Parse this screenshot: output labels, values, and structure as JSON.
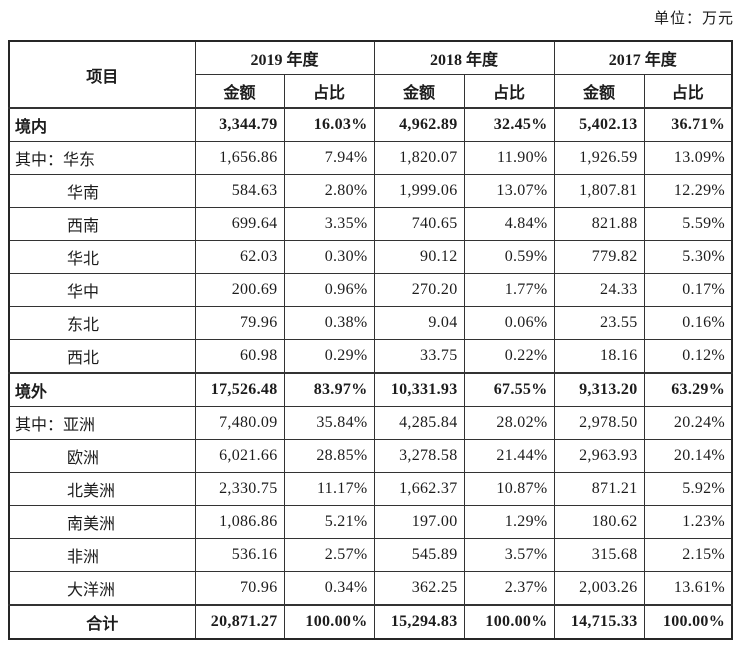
{
  "unit_label": "单位：万元",
  "table": {
    "headers": {
      "item": "项目",
      "years": [
        "2019 年度",
        "2018 年度",
        "2017 年度"
      ],
      "amount": "金额",
      "ratio": "占比"
    },
    "rows": [
      {
        "label": "境内",
        "type": "section",
        "values": [
          "3,344.79",
          "16.03%",
          "4,962.89",
          "32.45%",
          "5,402.13",
          "36.71%"
        ]
      },
      {
        "label": "其中：华东",
        "type": "sub-first",
        "values": [
          "1,656.86",
          "7.94%",
          "1,820.07",
          "11.90%",
          "1,926.59",
          "13.09%"
        ]
      },
      {
        "label": "华南",
        "type": "sub",
        "values": [
          "584.63",
          "2.80%",
          "1,999.06",
          "13.07%",
          "1,807.81",
          "12.29%"
        ]
      },
      {
        "label": "西南",
        "type": "sub",
        "values": [
          "699.64",
          "3.35%",
          "740.65",
          "4.84%",
          "821.88",
          "5.59%"
        ]
      },
      {
        "label": "华北",
        "type": "sub",
        "values": [
          "62.03",
          "0.30%",
          "90.12",
          "0.59%",
          "779.82",
          "5.30%"
        ]
      },
      {
        "label": "华中",
        "type": "sub",
        "values": [
          "200.69",
          "0.96%",
          "270.20",
          "1.77%",
          "24.33",
          "0.17%"
        ]
      },
      {
        "label": "东北",
        "type": "sub",
        "values": [
          "79.96",
          "0.38%",
          "9.04",
          "0.06%",
          "23.55",
          "0.16%"
        ]
      },
      {
        "label": "西北",
        "type": "sub",
        "values": [
          "60.98",
          "0.29%",
          "33.75",
          "0.22%",
          "18.16",
          "0.12%"
        ]
      },
      {
        "label": "境外",
        "type": "section",
        "values": [
          "17,526.48",
          "83.97%",
          "10,331.93",
          "67.55%",
          "9,313.20",
          "63.29%"
        ]
      },
      {
        "label": "其中：亚洲",
        "type": "sub-first",
        "values": [
          "7,480.09",
          "35.84%",
          "4,285.84",
          "28.02%",
          "2,978.50",
          "20.24%"
        ]
      },
      {
        "label": "欧洲",
        "type": "sub",
        "values": [
          "6,021.66",
          "28.85%",
          "3,278.58",
          "21.44%",
          "2,963.93",
          "20.14%"
        ]
      },
      {
        "label": "北美洲",
        "type": "sub",
        "values": [
          "2,330.75",
          "11.17%",
          "1,662.37",
          "10.87%",
          "871.21",
          "5.92%"
        ]
      },
      {
        "label": "南美洲",
        "type": "sub",
        "values": [
          "1,086.86",
          "5.21%",
          "197.00",
          "1.29%",
          "180.62",
          "1.23%"
        ]
      },
      {
        "label": "非洲",
        "type": "sub",
        "values": [
          "536.16",
          "2.57%",
          "545.89",
          "3.57%",
          "315.68",
          "2.15%"
        ]
      },
      {
        "label": "大洋洲",
        "type": "sub",
        "values": [
          "70.96",
          "0.34%",
          "362.25",
          "2.37%",
          "2,003.26",
          "13.61%"
        ]
      },
      {
        "label": "合计",
        "type": "total",
        "values": [
          "20,871.27",
          "100.00%",
          "15,294.83",
          "100.00%",
          "14,715.33",
          "100.00%"
        ]
      }
    ]
  }
}
